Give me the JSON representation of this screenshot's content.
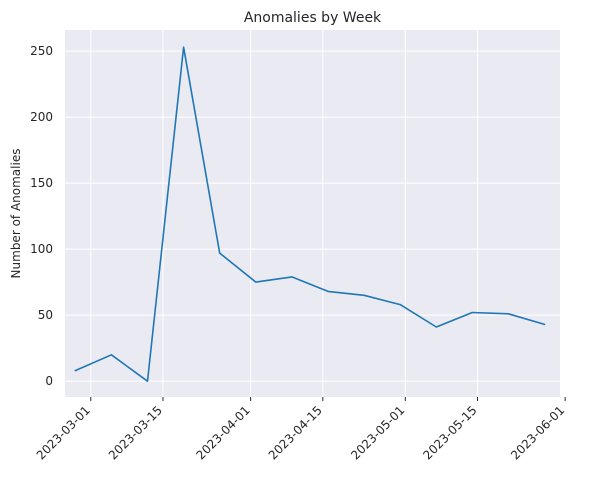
{
  "chart_data": {
    "type": "line",
    "title": "Anomalies by Week",
    "xlabel": "",
    "ylabel": "Number of Anomalies",
    "x_is_date": true,
    "xlim": [
      "2023-02-24",
      "2023-05-31"
    ],
    "ylim": [
      -12,
      266
    ],
    "x_ticks": [
      "2023-03-01",
      "2023-03-15",
      "2023-04-01",
      "2023-04-15",
      "2023-05-01",
      "2023-05-15",
      "2023-06-01"
    ],
    "y_ticks": [
      0,
      50,
      100,
      150,
      200,
      250
    ],
    "grid": true,
    "legend": "none",
    "colors": {
      "line": "#1f77b4",
      "plot_bg": "#eaeaf2",
      "grid": "#ffffff",
      "text": "#262626"
    },
    "series": [
      {
        "x": [
          "2023-02-26",
          "2023-03-05",
          "2023-03-12",
          "2023-03-19",
          "2023-03-26",
          "2023-04-02",
          "2023-04-09",
          "2023-04-16",
          "2023-04-23",
          "2023-04-30",
          "2023-05-07",
          "2023-05-14",
          "2023-05-21",
          "2023-05-28"
        ],
        "values": [
          8,
          20,
          0,
          253,
          97,
          75,
          79,
          68,
          65,
          58,
          41,
          52,
          51,
          43
        ]
      }
    ]
  }
}
